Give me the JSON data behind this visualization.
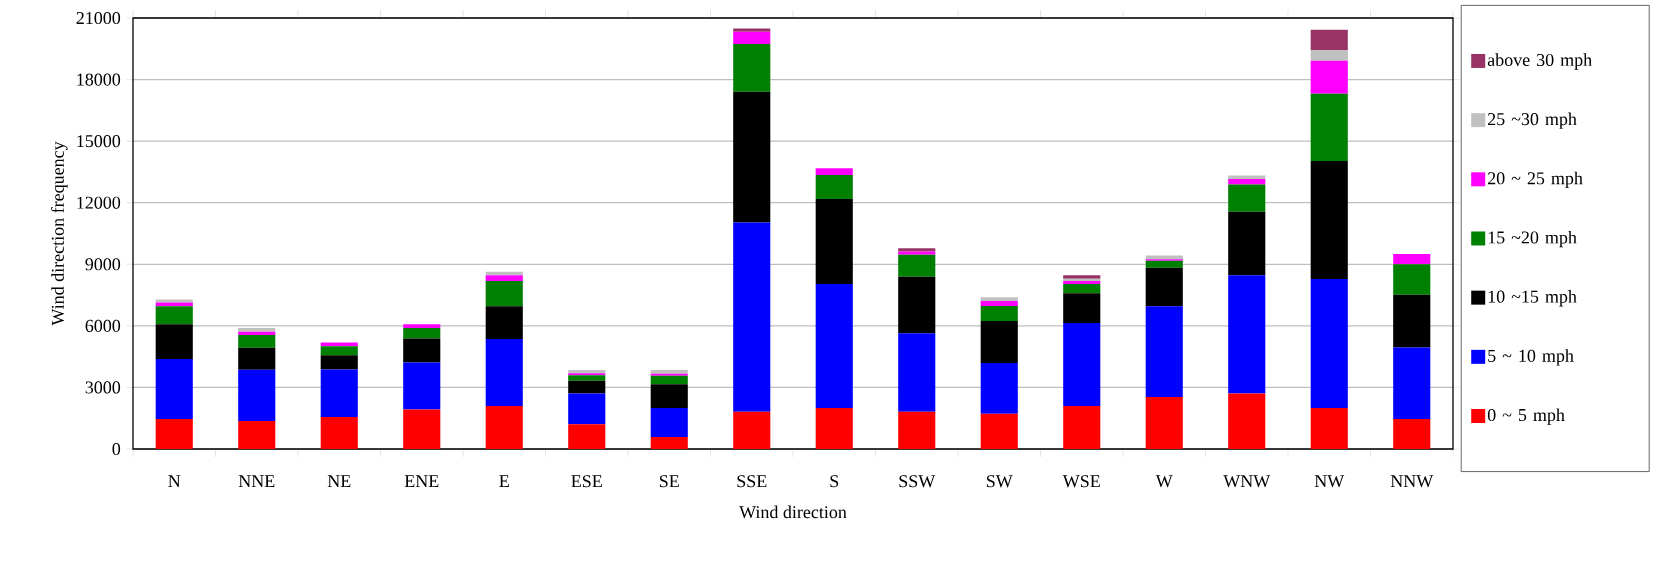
{
  "chart_data": {
    "type": "bar",
    "stacked": true,
    "xlabel": "Wind direction",
    "ylabel": "Wind direction frequency",
    "categories": [
      "N",
      "NNE",
      "NE",
      "ENE",
      "E",
      "ESE",
      "SE",
      "SSE",
      "S",
      "SSW",
      "SW",
      "WSE",
      "W",
      "WNW",
      "NW",
      "NNW"
    ],
    "series": [
      {
        "name": "0 ~ 5 mph",
        "color": "#ff0000",
        "values": [
          1460,
          1360,
          1560,
          1920,
          2100,
          1200,
          590,
          1820,
          2000,
          1820,
          1720,
          2100,
          2530,
          2710,
          2000,
          1460
        ]
      },
      {
        "name": "5 ~ 10 mph",
        "color": "#0000ff",
        "values": [
          2920,
          2500,
          2310,
          2290,
          3260,
          1510,
          1410,
          9220,
          6040,
          3820,
          2470,
          4040,
          4420,
          5750,
          6280,
          3480
        ]
      },
      {
        "name": "10 ~15 mph",
        "color": "#000000",
        "values": [
          1700,
          1070,
          700,
          1170,
          1590,
          620,
          1150,
          6370,
          4140,
          2750,
          2050,
          1450,
          1880,
          3100,
          5750,
          2570
        ]
      },
      {
        "name": "15 ~20 mph",
        "color": "#008000",
        "values": [
          880,
          620,
          440,
          520,
          1230,
          260,
          420,
          2320,
          1170,
          1070,
          730,
          450,
          340,
          1330,
          3280,
          1490
        ]
      },
      {
        "name": "20 ~ 25 mph",
        "color": "#ff00ff",
        "values": [
          180,
          160,
          180,
          180,
          280,
          100,
          100,
          600,
          330,
          160,
          240,
          150,
          80,
          260,
          1610,
          500
        ]
      },
      {
        "name": "25 ~30 mph",
        "color": "#c0c0c0",
        "values": [
          150,
          180,
          0,
          0,
          180,
          160,
          180,
          0,
          0,
          0,
          180,
          100,
          180,
          180,
          520,
          0
        ]
      },
      {
        "name": "above 30 mph",
        "color": "#993366",
        "values": [
          0,
          0,
          0,
          0,
          0,
          0,
          0,
          160,
          0,
          160,
          0,
          180,
          0,
          0,
          990,
          0
        ]
      }
    ],
    "ylim": [
      0,
      21000
    ],
    "yticks": [
      0,
      3000,
      6000,
      9000,
      12000,
      15000,
      18000,
      21000
    ],
    "grid": "y",
    "legend": "right"
  }
}
